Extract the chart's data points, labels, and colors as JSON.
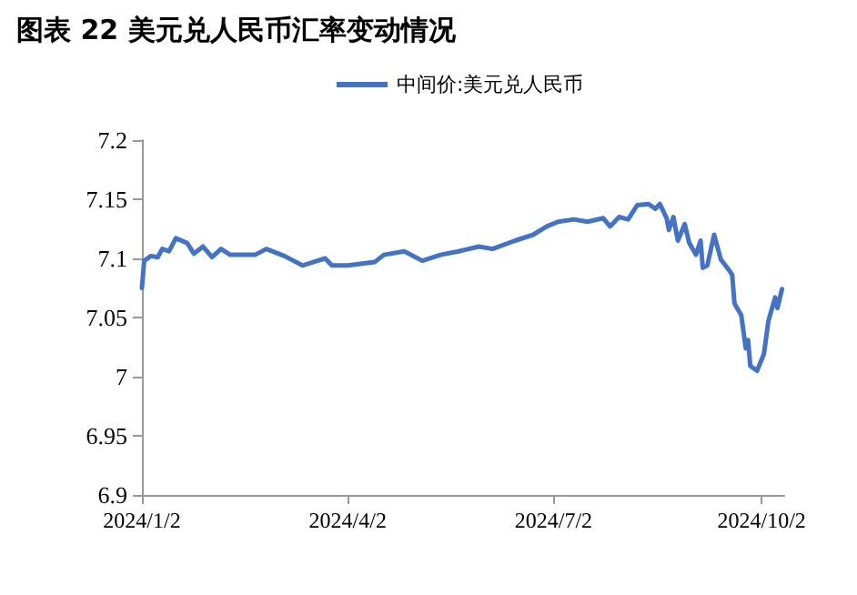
{
  "chart_data": {
    "type": "line",
    "title": "图表 22 美元兑人民币汇率变动情况",
    "series": [
      {
        "name": "中间价:美元兑人民币",
        "color": "#4472c4",
        "x": [
          "2024-01-02",
          "2024-01-03",
          "2024-01-06",
          "2024-01-09",
          "2024-01-11",
          "2024-01-14",
          "2024-01-17",
          "2024-01-22",
          "2024-01-25",
          "2024-01-29",
          "2024-02-02",
          "2024-02-06",
          "2024-02-10",
          "2024-02-21",
          "2024-02-26",
          "2024-03-05",
          "2024-03-13",
          "2024-03-18",
          "2024-03-23",
          "2024-03-26",
          "2024-04-02",
          "2024-04-14",
          "2024-04-18",
          "2024-04-27",
          "2024-05-05",
          "2024-05-13",
          "2024-05-21",
          "2024-05-30",
          "2024-06-05",
          "2024-06-15",
          "2024-06-23",
          "2024-06-29",
          "2024-07-04",
          "2024-07-11",
          "2024-07-17",
          "2024-07-24",
          "2024-07-27",
          "2024-07-31",
          "2024-08-04",
          "2024-08-08",
          "2024-08-13",
          "2024-08-16",
          "2024-08-18",
          "2024-08-21",
          "2024-08-22",
          "2024-08-24",
          "2024-08-26",
          "2024-08-29",
          "2024-08-31",
          "2024-09-03",
          "2024-09-05",
          "2024-09-06",
          "2024-09-08",
          "2024-09-11",
          "2024-09-14",
          "2024-09-18",
          "2024-09-19",
          "2024-09-20",
          "2024-09-23",
          "2024-09-25",
          "2024-09-26",
          "2024-09-27",
          "2024-09-30",
          "2024-10-03",
          "2024-10-05",
          "2024-10-08",
          "2024-10-09",
          "2024-10-11"
        ],
        "values": [
          7.075,
          7.098,
          7.102,
          7.101,
          7.108,
          7.106,
          7.117,
          7.113,
          7.104,
          7.11,
          7.101,
          7.108,
          7.103,
          7.103,
          7.108,
          7.102,
          7.094,
          7.097,
          7.1,
          7.094,
          7.094,
          7.097,
          7.103,
          7.106,
          7.098,
          7.103,
          7.106,
          7.11,
          7.108,
          7.115,
          7.12,
          7.127,
          7.131,
          7.133,
          7.131,
          7.134,
          7.127,
          7.135,
          7.133,
          7.145,
          7.146,
          7.142,
          7.146,
          7.134,
          7.124,
          7.135,
          7.115,
          7.129,
          7.113,
          7.103,
          7.115,
          7.092,
          7.094,
          7.12,
          7.099,
          7.089,
          7.086,
          7.062,
          7.052,
          7.024,
          7.031,
          7.009,
          7.005,
          7.019,
          7.047,
          7.067,
          7.058,
          7.074
        ]
      }
    ],
    "xlim": [
      "2024-01-02",
      "2024-10-12"
    ],
    "xticks": [
      {
        "value": "2024-01-02",
        "label": "2024/1/2"
      },
      {
        "value": "2024-04-02",
        "label": "2024/4/2"
      },
      {
        "value": "2024-07-02",
        "label": "2024/7/2"
      },
      {
        "value": "2024-10-02",
        "label": "2024/10/2"
      }
    ],
    "ylim": [
      6.9,
      7.2
    ],
    "yticks": [
      6.9,
      6.95,
      7,
      7.05,
      7.1,
      7.15,
      7.2
    ],
    "grid": false,
    "legend": "top",
    "marker": "none",
    "line_style": "solid"
  }
}
